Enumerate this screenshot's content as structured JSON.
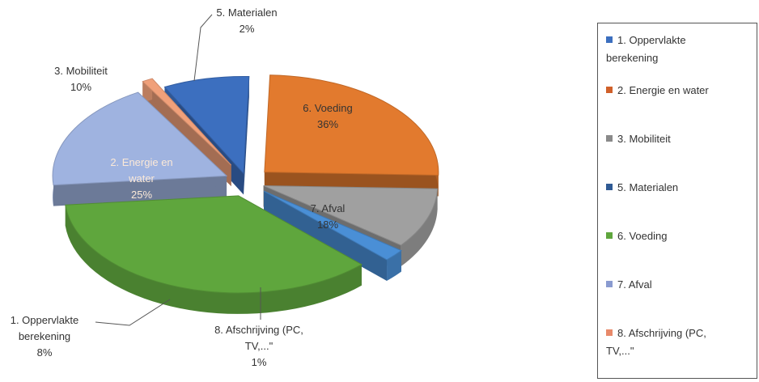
{
  "chart_data": {
    "type": "pie",
    "slices": [
      {
        "key": "opp",
        "label": "1. Oppervlakte berekening",
        "label_lines": [
          "1. Oppervlakte",
          "berekening"
        ],
        "value": 8,
        "pct_label": "8%",
        "color": "#3c6fbf"
      },
      {
        "key": "energie",
        "label": "2. Energie en water",
        "label_lines": [
          "2. Energie en",
          "water"
        ],
        "value": 25,
        "pct_label": "25%",
        "color": "#e27a2e"
      },
      {
        "key": "mob",
        "label": "3. Mobiliteit",
        "label_lines": [
          "3. Mobiliteit"
        ],
        "value": 10,
        "pct_label": "10%",
        "color": "#a0a0a0"
      },
      {
        "key": "mat",
        "label": "5. Materialen",
        "label_lines": [
          "5. Materialen"
        ],
        "value": 2,
        "pct_label": "2%",
        "color": "#4a8fd6"
      },
      {
        "key": "voeding",
        "label": "6. Voeding",
        "label_lines": [
          "6. Voeding"
        ],
        "value": 36,
        "pct_label": "36%",
        "color": "#5fa63d"
      },
      {
        "key": "afval",
        "label": "7. Afval",
        "label_lines": [
          "7. Afval"
        ],
        "value": 18,
        "pct_label": "18%",
        "color": "#9fb3e0"
      },
      {
        "key": "afschr",
        "label": "8. Afschrijving (PC, TV,...\"",
        "label_lines": [
          "8. Afschrijving (PC,",
          "TV,...\""
        ],
        "value": 1,
        "pct_label": "1%",
        "color": "#f0a07a"
      }
    ],
    "legend": {
      "placement": "right",
      "items": [
        {
          "lines": [
            "1. Oppervlakte",
            "berekening"
          ],
          "color": "#3c6fbf"
        },
        {
          "lines": [
            "2. Energie en water"
          ],
          "color": "#d0602a"
        },
        {
          "lines": [
            "3. Mobiliteit"
          ],
          "color": "#8a8a8a"
        },
        {
          "lines": [
            "5. Materialen"
          ],
          "color": "#2f5a94"
        },
        {
          "lines": [
            "6. Voeding"
          ],
          "color": "#5fa63d"
        },
        {
          "lines": [
            "7. Afval"
          ],
          "color": "#8a9bd0"
        },
        {
          "lines": [
            "8. Afschrijving (PC,",
            "TV,...\""
          ],
          "color": "#e88a6a"
        }
      ]
    }
  }
}
